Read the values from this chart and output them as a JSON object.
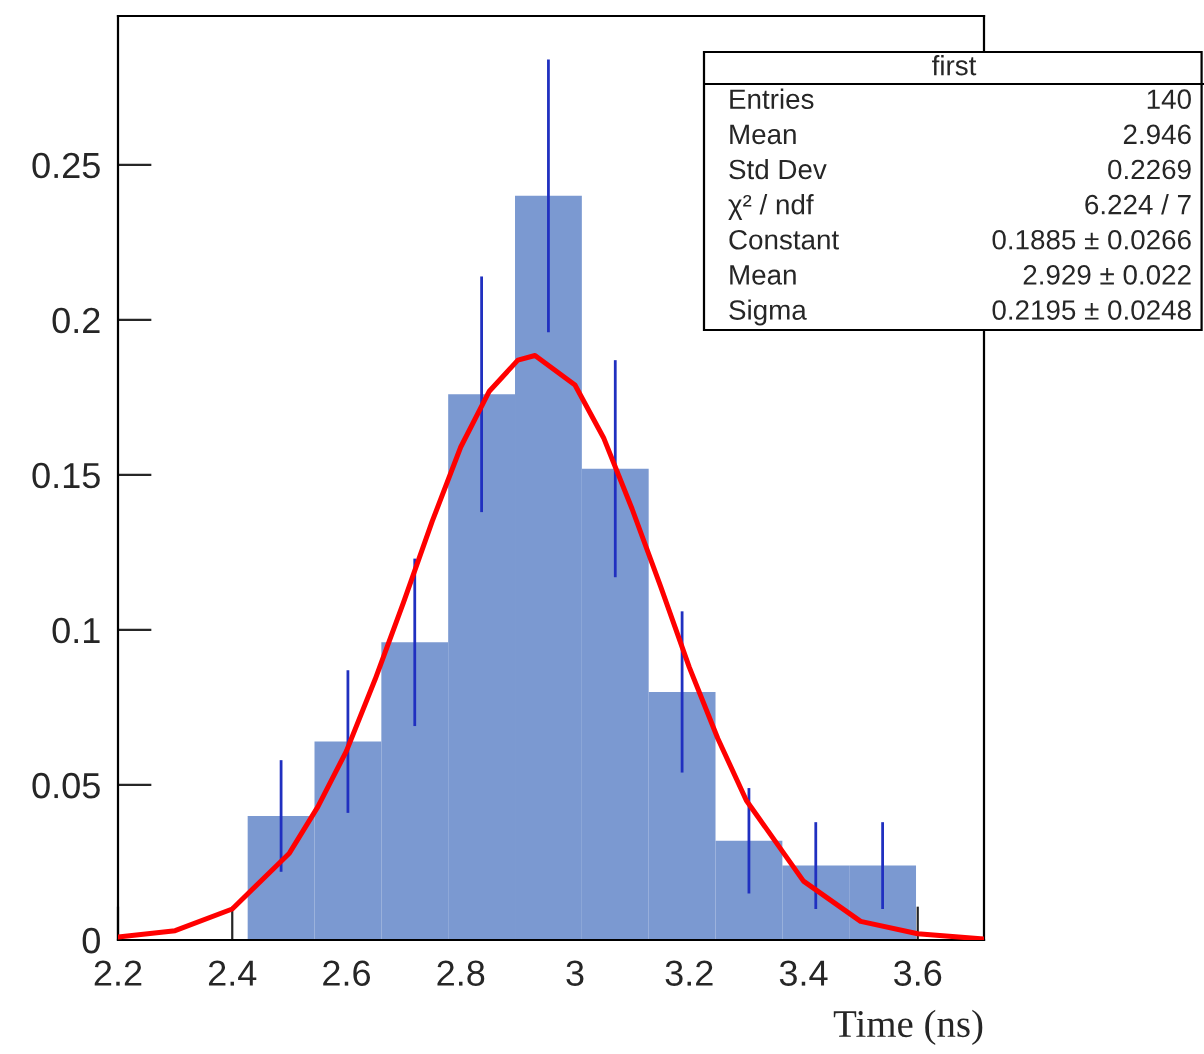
{
  "chart_data": {
    "type": "histogram",
    "xlabel": "Time (ns)",
    "bins": [
      2.427,
      2.544,
      2.661,
      2.778,
      2.895,
      3.012,
      3.129,
      3.246,
      3.363,
      3.48,
      3.597
    ],
    "values": [
      0.04,
      0.064,
      0.096,
      0.176,
      0.24,
      0.152,
      0.08,
      0.032,
      0.024,
      0.024
    ],
    "errors": [
      0.018,
      0.023,
      0.027,
      0.038,
      0.044,
      0.035,
      0.026,
      0.017,
      0.014,
      0.014
    ],
    "color": "#7b99d1",
    "series": [
      {
        "type": "line",
        "color": "#ff0000",
        "x": [
          2.2,
          2.3,
          2.4,
          2.5,
          2.55,
          2.6,
          2.65,
          2.7,
          2.75,
          2.8,
          2.85,
          2.9,
          2.93,
          3.0,
          3.05,
          3.1,
          3.15,
          3.2,
          3.25,
          3.3,
          3.4,
          3.5,
          3.6,
          3.716
        ],
        "values": [
          0.001,
          0.003,
          0.01,
          0.028,
          0.043,
          0.061,
          0.084,
          0.109,
          0.135,
          0.159,
          0.177,
          0.187,
          0.1885,
          0.179,
          0.162,
          0.139,
          0.114,
          0.088,
          0.065,
          0.045,
          0.019,
          0.006,
          0.002,
          0.0003
        ]
      }
    ],
    "xlim": [
      2.2,
      3.716
    ],
    "ylim": [
      0,
      0.298
    ],
    "xticks": [
      2.2,
      2.4,
      2.6,
      2.8,
      3,
      3.2,
      3.4,
      3.6
    ],
    "yticks": [
      0,
      0.05,
      0.1,
      0.15,
      0.2,
      0.25
    ],
    "annotations": [
      "first",
      "Entries",
      "140",
      "Mean",
      "2.946",
      "Std Dev",
      "0.2269",
      "χ² / ndf",
      "6.224 / 7",
      "Constant",
      "0.1885 ± 0.0266",
      "Mean",
      "2.929 ± 0.022",
      "Sigma",
      "0.2195 ± 0.0248"
    ]
  }
}
